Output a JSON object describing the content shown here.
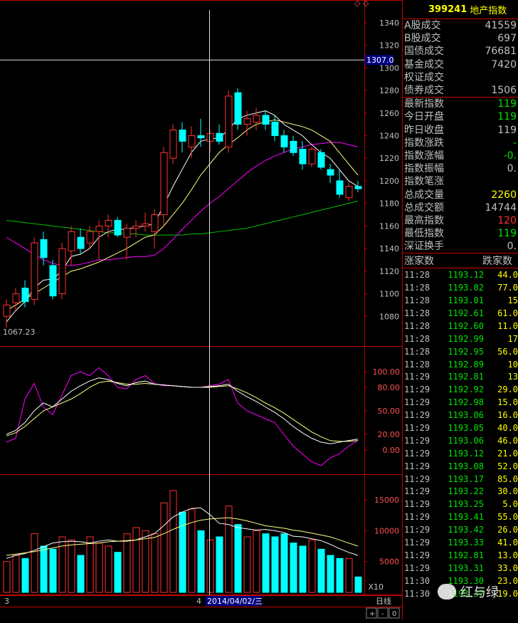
{
  "header": {
    "code": "399241",
    "name": "地产指数"
  },
  "stats_top": [
    {
      "label": "A股成交",
      "value": "41559"
    },
    {
      "label": "B股成交",
      "value": "697"
    },
    {
      "label": "国债成交",
      "value": "76681"
    },
    {
      "label": "基金成交",
      "value": "7420"
    },
    {
      "label": "权证成交",
      "value": ""
    },
    {
      "label": "债券成交",
      "value": "1506"
    }
  ],
  "stats_mid": [
    {
      "label": "最新指数",
      "value": "119",
      "color": "green"
    },
    {
      "label": "今日开盘",
      "value": "119",
      "color": "green"
    },
    {
      "label": "昨日收盘",
      "value": "119",
      "color": "white"
    },
    {
      "label": "指数涨跌",
      "value": "-",
      "color": "green"
    },
    {
      "label": "指数涨幅",
      "value": "-0.",
      "color": "green"
    },
    {
      "label": "指数振幅",
      "value": "0.",
      "color": "white"
    },
    {
      "label": "指数笔涨",
      "value": "",
      "color": "white"
    },
    {
      "label": "总成交量",
      "value": "2260",
      "color": "yellow"
    },
    {
      "label": "总成交额",
      "value": "14744",
      "color": "white"
    },
    {
      "label": "最高指数",
      "value": "120",
      "color": "red"
    },
    {
      "label": "最低指数",
      "value": "119",
      "color": "green"
    },
    {
      "label": "深证换手",
      "value": "0.",
      "color": "white"
    }
  ],
  "tick_header": {
    "left": "涨家数",
    "right": "跌家数"
  },
  "ticks": [
    {
      "t": "11:28",
      "p": "1193.12",
      "v": "44.0"
    },
    {
      "t": "11:28",
      "p": "1193.02",
      "v": "77.0"
    },
    {
      "t": "11:28",
      "p": "1193.01",
      "v": "15"
    },
    {
      "t": "11:28",
      "p": "1192.61",
      "v": "61.0"
    },
    {
      "t": "11:28",
      "p": "1192.60",
      "v": "11.0"
    },
    {
      "t": "11:28",
      "p": "1192.99",
      "v": "17"
    },
    {
      "t": "11:28",
      "p": "1192.95",
      "v": "56.0"
    },
    {
      "t": "11:28",
      "p": "1192.89",
      "v": "10"
    },
    {
      "t": "11:29",
      "p": "1192.81",
      "v": "13"
    },
    {
      "t": "11:29",
      "p": "1192.92",
      "v": "29.0"
    },
    {
      "t": "11:29",
      "p": "1192.98",
      "v": "15.0"
    },
    {
      "t": "11:29",
      "p": "1193.06",
      "v": "16.0"
    },
    {
      "t": "11:29",
      "p": "1193.05",
      "v": "40.0"
    },
    {
      "t": "11:29",
      "p": "1193.06",
      "v": "46.0"
    },
    {
      "t": "11:29",
      "p": "1193.12",
      "v": "21.0"
    },
    {
      "t": "11:29",
      "p": "1193.08",
      "v": "52.0"
    },
    {
      "t": "11:29",
      "p": "1193.17",
      "v": "85.0"
    },
    {
      "t": "11:29",
      "p": "1193.22",
      "v": "30.0"
    },
    {
      "t": "11:29",
      "p": "1193.25",
      "v": "5.0"
    },
    {
      "t": "11:29",
      "p": "1193.41",
      "v": "55.0"
    },
    {
      "t": "11:29",
      "p": "1193.42",
      "v": "26.0"
    },
    {
      "t": "11:29",
      "p": "1193.33",
      "v": "41.0"
    },
    {
      "t": "11:29",
      "p": "1192.81",
      "v": "13.0"
    },
    {
      "t": "11:29",
      "p": "1193.31",
      "v": "33.0"
    },
    {
      "t": "11:30",
      "p": "1193.30",
      "v": "23.0"
    },
    {
      "t": "11:30",
      "p": "1193.37",
      "v": "19.0"
    }
  ],
  "price_axis": {
    "ticks": [
      "1340",
      "1320",
      "1300",
      "1280",
      "1260",
      "1240",
      "1220",
      "1200",
      "1180",
      "1160",
      "1140",
      "1120",
      "1100",
      "1080"
    ],
    "cursor_label": "1307.0",
    "low_label": "1067.23"
  },
  "kdj_axis": {
    "ticks": [
      "100.00",
      "80.00",
      "50.00",
      "20.00",
      "0.00"
    ]
  },
  "vol_axis": {
    "ticks": [
      "15000",
      "10000",
      "5000"
    ],
    "unit": "X10"
  },
  "bottom": {
    "start_label": "3",
    "mid_label": "4",
    "date_label": "2014/04/02/三",
    "period_label": "日线",
    "zoom_in": "+",
    "zoom_out": "-",
    "zoom_reset": "0"
  },
  "watermark": {
    "text": "红与绿"
  },
  "colors": {
    "up": "#ff3030",
    "down": "#00ffff",
    "ma5": "#ffffff",
    "ma10": "#ffff80",
    "ma20": "#ff00ff",
    "ma60": "#00c000",
    "frame": "#c00000"
  },
  "chart_data": {
    "type": "candlestick",
    "candles": [
      {
        "o": 1080,
        "h": 1095,
        "l": 1070,
        "c": 1090
      },
      {
        "o": 1092,
        "h": 1105,
        "l": 1085,
        "c": 1100
      },
      {
        "o": 1105,
        "h": 1112,
        "l": 1088,
        "c": 1093
      },
      {
        "o": 1095,
        "h": 1150,
        "l": 1090,
        "c": 1145
      },
      {
        "o": 1148,
        "h": 1155,
        "l": 1125,
        "c": 1132
      },
      {
        "o": 1125,
        "h": 1130,
        "l": 1095,
        "c": 1098
      },
      {
        "o": 1100,
        "h": 1145,
        "l": 1095,
        "c": 1140
      },
      {
        "o": 1138,
        "h": 1160,
        "l": 1125,
        "c": 1155
      },
      {
        "o": 1150,
        "h": 1158,
        "l": 1135,
        "c": 1140
      },
      {
        "o": 1145,
        "h": 1160,
        "l": 1140,
        "c": 1155
      },
      {
        "o": 1155,
        "h": 1165,
        "l": 1130,
        "c": 1160
      },
      {
        "o": 1160,
        "h": 1170,
        "l": 1150,
        "c": 1165
      },
      {
        "o": 1165,
        "h": 1168,
        "l": 1150,
        "c": 1152
      },
      {
        "o": 1150,
        "h": 1162,
        "l": 1130,
        "c": 1158
      },
      {
        "o": 1158,
        "h": 1165,
        "l": 1150,
        "c": 1160
      },
      {
        "o": 1160,
        "h": 1172,
        "l": 1155,
        "c": 1162
      },
      {
        "o": 1155,
        "h": 1175,
        "l": 1140,
        "c": 1170
      },
      {
        "o": 1170,
        "h": 1230,
        "l": 1160,
        "c": 1225
      },
      {
        "o": 1220,
        "h": 1250,
        "l": 1215,
        "c": 1245
      },
      {
        "o": 1245,
        "h": 1252,
        "l": 1225,
        "c": 1235
      },
      {
        "o": 1230,
        "h": 1248,
        "l": 1220,
        "c": 1240
      },
      {
        "o": 1240,
        "h": 1255,
        "l": 1230,
        "c": 1238
      },
      {
        "o": 1235,
        "h": 1245,
        "l": 1225,
        "c": 1242
      },
      {
        "o": 1242,
        "h": 1250,
        "l": 1232,
        "c": 1235
      },
      {
        "o": 1230,
        "h": 1280,
        "l": 1225,
        "c": 1275
      },
      {
        "o": 1278,
        "h": 1282,
        "l": 1245,
        "c": 1250
      },
      {
        "o": 1250,
        "h": 1262,
        "l": 1240,
        "c": 1255
      },
      {
        "o": 1252,
        "h": 1265,
        "l": 1245,
        "c": 1258
      },
      {
        "o": 1258,
        "h": 1262,
        "l": 1245,
        "c": 1250
      },
      {
        "o": 1252,
        "h": 1258,
        "l": 1235,
        "c": 1240
      },
      {
        "o": 1240,
        "h": 1245,
        "l": 1225,
        "c": 1230
      },
      {
        "o": 1235,
        "h": 1240,
        "l": 1222,
        "c": 1225
      },
      {
        "o": 1228,
        "h": 1235,
        "l": 1210,
        "c": 1215
      },
      {
        "o": 1215,
        "h": 1230,
        "l": 1212,
        "c": 1228
      },
      {
        "o": 1225,
        "h": 1228,
        "l": 1210,
        "c": 1212
      },
      {
        "o": 1210,
        "h": 1215,
        "l": 1198,
        "c": 1205
      },
      {
        "o": 1200,
        "h": 1210,
        "l": 1185,
        "c": 1188
      },
      {
        "o": 1185,
        "h": 1198,
        "l": 1182,
        "c": 1195
      },
      {
        "o": 1195,
        "h": 1200,
        "l": 1190,
        "c": 1193
      }
    ],
    "ma5": [
      1075,
      1085,
      1093,
      1105,
      1112,
      1113,
      1120,
      1133,
      1135,
      1140,
      1150,
      1155,
      1157,
      1157,
      1159,
      1160,
      1162,
      1178,
      1195,
      1210,
      1225,
      1235,
      1237,
      1238,
      1245,
      1255,
      1258,
      1260,
      1262,
      1258,
      1250,
      1245,
      1240,
      1232,
      1225,
      1220,
      1210,
      1200,
      1195
    ],
    "ma10": [
      1085,
      1090,
      1095,
      1100,
      1105,
      1110,
      1115,
      1120,
      1122,
      1125,
      1128,
      1132,
      1136,
      1140,
      1145,
      1150,
      1152,
      1160,
      1170,
      1180,
      1192,
      1205,
      1215,
      1225,
      1232,
      1238,
      1245,
      1250,
      1252,
      1254,
      1252,
      1250,
      1248,
      1245,
      1240,
      1235,
      1225,
      1215,
      1205
    ],
    "ma20": [
      1150,
      1145,
      1140,
      1135,
      1130,
      1127,
      1125,
      1125,
      1126,
      1128,
      1130,
      1130,
      1131,
      1132,
      1133,
      1133,
      1134,
      1140,
      1148,
      1157,
      1165,
      1173,
      1180,
      1186,
      1193,
      1200,
      1207,
      1213,
      1218,
      1222,
      1225,
      1228,
      1230,
      1232,
      1233,
      1234,
      1234,
      1232,
      1230
    ],
    "ma60": [
      1165,
      1164,
      1163,
      1162,
      1161,
      1160,
      1159,
      1158,
      1157,
      1156,
      1155,
      1154,
      1154,
      1153,
      1153,
      1152,
      1152,
      1152,
      1152,
      1152,
      1153,
      1153,
      1154,
      1155,
      1156,
      1157,
      1158,
      1160,
      1162,
      1164,
      1166,
      1168,
      1170,
      1172,
      1174,
      1176,
      1178,
      1180,
      1182
    ],
    "kdj_k": [
      20,
      25,
      35,
      50,
      60,
      55,
      65,
      75,
      82,
      88,
      92,
      90,
      85,
      82,
      86,
      88,
      84,
      83,
      82,
      81,
      80,
      80,
      81,
      82,
      84,
      75,
      68,
      62,
      55,
      48,
      40,
      30,
      22,
      15,
      10,
      8,
      10,
      12,
      14
    ],
    "kdj_d": [
      18,
      22,
      30,
      40,
      50,
      55,
      60,
      65,
      72,
      80,
      86,
      88,
      86,
      84,
      84,
      85,
      84,
      83,
      82,
      81,
      80,
      80,
      80,
      81,
      82,
      78,
      73,
      67,
      60,
      54,
      47,
      39,
      31,
      23,
      17,
      12,
      11,
      11,
      12
    ],
    "kdj_j": [
      10,
      15,
      65,
      85,
      55,
      45,
      70,
      95,
      100,
      95,
      105,
      95,
      80,
      78,
      90,
      95,
      85,
      82,
      82,
      81,
      80,
      80,
      82,
      84,
      90,
      60,
      50,
      45,
      40,
      35,
      20,
      5,
      -5,
      -15,
      -20,
      -10,
      -5,
      5,
      12
    ],
    "volume": [
      5000,
      6000,
      5500,
      9500,
      7500,
      7000,
      9000,
      8500,
      6000,
      9000,
      8000,
      7500,
      6500,
      9500,
      10500,
      10000,
      9500,
      14500,
      16500,
      13000,
      13500,
      10000,
      8500,
      9000,
      14000,
      11000,
      9000,
      10000,
      9500,
      9000,
      9500,
      8000,
      7500,
      8500,
      7000,
      6000,
      5500,
      5500,
      2500
    ],
    "vol_ma5": [
      5500,
      6000,
      6300,
      6800,
      7400,
      8000,
      8200,
      8300,
      8200,
      8000,
      8300,
      8500,
      8300,
      8300,
      8500,
      9000,
      9500,
      10800,
      12200,
      13000,
      13600,
      13700,
      12600,
      11200,
      11000,
      10500,
      10300,
      10100,
      10200,
      10000,
      9700,
      9100,
      9000,
      8700,
      8400,
      7800,
      7100,
      6500,
      6000
    ],
    "vol_ma10": [
      6000,
      6200,
      6400,
      6600,
      6900,
      7200,
      7500,
      7700,
      7800,
      7900,
      8000,
      8200,
      8300,
      8400,
      8500,
      8700,
      8900,
      9500,
      10200,
      10800,
      11300,
      11700,
      11900,
      12000,
      12100,
      11900,
      11600,
      11200,
      10800,
      10600,
      10400,
      10100,
      9900,
      9600,
      9300,
      9000,
      8500,
      8000,
      7500
    ],
    "price_ylim": [
      1060,
      1350
    ],
    "kdj_ylim": [
      -20,
      120
    ],
    "vol_ylim": [
      0,
      18000
    ]
  }
}
